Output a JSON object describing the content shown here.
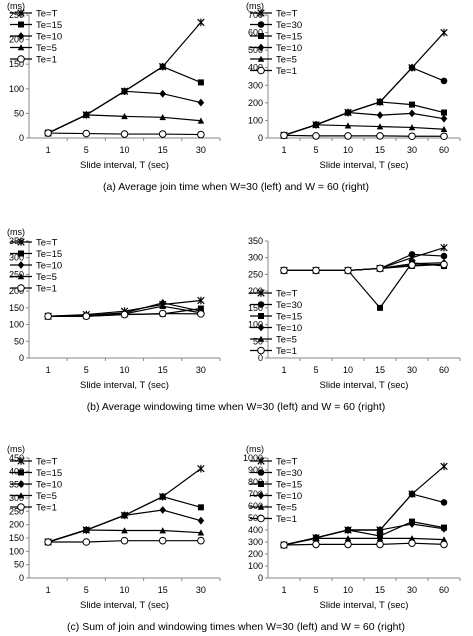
{
  "figure": {
    "captions": [
      "(a) Average join time when W=30 (left) and W = 60 (right)",
      "(b) Average windowing time when W=30 (left) and W = 60 (right)",
      "(c) Sum of join and windowing times when W=30 (left) and W = 60 (right)"
    ]
  },
  "chart_data": [
    {
      "type": "line",
      "panel": "a-left",
      "title": "",
      "xlabel": "Slide interval, T (sec)",
      "ylabel": "(ms)",
      "categories": [
        "1",
        "5",
        "10",
        "15",
        "30"
      ],
      "ylim": [
        0,
        250
      ],
      "yticks": [
        0,
        50,
        100,
        150,
        200,
        250
      ],
      "grid": false,
      "legend": "top-left",
      "series": [
        {
          "name": "Te=T",
          "marker": "star",
          "values": [
            10,
            47,
            95,
            145,
            235
          ]
        },
        {
          "name": "Te=15",
          "marker": "square",
          "values": [
            10,
            47,
            95,
            145,
            113
          ]
        },
        {
          "name": "Te=10",
          "marker": "diamond",
          "values": [
            10,
            47,
            95,
            90,
            72
          ]
        },
        {
          "name": "Te=5",
          "marker": "triangle",
          "values": [
            10,
            47,
            44,
            42,
            35
          ]
        },
        {
          "name": "Te=1",
          "marker": "circle",
          "values": [
            10,
            9,
            8,
            8,
            7
          ]
        }
      ]
    },
    {
      "type": "line",
      "panel": "a-right",
      "title": "",
      "xlabel": "Slide interval, T (sec)",
      "ylabel": "(ms)",
      "categories": [
        "1",
        "5",
        "10",
        "15",
        "30",
        "60"
      ],
      "ylim": [
        0,
        700
      ],
      "yticks": [
        0,
        100,
        200,
        300,
        400,
        500,
        600,
        700
      ],
      "grid": false,
      "legend": "top-left",
      "series": [
        {
          "name": "Te=T",
          "marker": "star",
          "values": [
            15,
            75,
            145,
            205,
            400,
            600
          ]
        },
        {
          "name": "Te=30",
          "marker": "circle-filled",
          "values": [
            15,
            75,
            145,
            205,
            400,
            325
          ]
        },
        {
          "name": "Te=15",
          "marker": "square",
          "values": [
            15,
            75,
            145,
            205,
            190,
            145
          ]
        },
        {
          "name": "Te=10",
          "marker": "diamond",
          "values": [
            15,
            75,
            145,
            130,
            140,
            110
          ]
        },
        {
          "name": "Te=5",
          "marker": "triangle",
          "values": [
            15,
            75,
            70,
            65,
            60,
            50
          ]
        },
        {
          "name": "Te=1",
          "marker": "circle",
          "values": [
            15,
            12,
            12,
            12,
            10,
            10
          ]
        }
      ]
    },
    {
      "type": "line",
      "panel": "b-left",
      "title": "",
      "xlabel": "Slide interval, T (sec)",
      "ylabel": "(ms)",
      "categories": [
        "1",
        "5",
        "10",
        "15",
        "30"
      ],
      "ylim": [
        0,
        350
      ],
      "yticks": [
        0,
        50,
        100,
        150,
        200,
        250,
        300,
        350
      ],
      "grid": false,
      "legend": "top-left",
      "series": [
        {
          "name": "Te=T",
          "marker": "star",
          "values": [
            125,
            130,
            140,
            160,
            172
          ]
        },
        {
          "name": "Te=15",
          "marker": "square",
          "values": [
            125,
            125,
            130,
            132,
            148
          ]
        },
        {
          "name": "Te=10",
          "marker": "diamond",
          "values": [
            125,
            128,
            135,
            165,
            140
          ]
        },
        {
          "name": "Te=5",
          "marker": "triangle",
          "values": [
            125,
            125,
            132,
            155,
            135
          ]
        },
        {
          "name": "Te=1",
          "marker": "circle",
          "values": [
            125,
            125,
            130,
            133,
            132
          ]
        }
      ]
    },
    {
      "type": "line",
      "panel": "b-right",
      "title": "",
      "xlabel": "Slide interval, T (sec)",
      "ylabel": "",
      "categories": [
        "1",
        "5",
        "10",
        "15",
        "30",
        "60"
      ],
      "ylim": [
        0,
        350
      ],
      "yticks": [
        0,
        50,
        100,
        150,
        200,
        250,
        300,
        350
      ],
      "grid": false,
      "legend": "bottom-left",
      "series": [
        {
          "name": "Te=T",
          "marker": "star",
          "values": [
            262,
            262,
            262,
            268,
            300,
            330
          ]
        },
        {
          "name": "Te=30",
          "marker": "circle-filled",
          "values": [
            262,
            262,
            262,
            268,
            310,
            305
          ]
        },
        {
          "name": "Te=15",
          "marker": "square",
          "values": [
            262,
            262,
            262,
            150,
            285,
            275
          ]
        },
        {
          "name": "Te=10",
          "marker": "diamond",
          "values": [
            262,
            262,
            262,
            268,
            282,
            285
          ]
        },
        {
          "name": "Te=5",
          "marker": "triangle",
          "values": [
            262,
            262,
            262,
            268,
            275,
            280
          ]
        },
        {
          "name": "Te=1",
          "marker": "circle",
          "values": [
            262,
            262,
            262,
            268,
            278,
            280
          ]
        }
      ]
    },
    {
      "type": "line",
      "panel": "c-left",
      "title": "",
      "xlabel": "Slide interval, T (sec)",
      "ylabel": "(ms)",
      "categories": [
        "1",
        "5",
        "10",
        "15",
        "30"
      ],
      "ylim": [
        0,
        450
      ],
      "yticks": [
        0,
        50,
        100,
        150,
        200,
        250,
        300,
        350,
        400,
        450
      ],
      "grid": false,
      "legend": "top-left",
      "series": [
        {
          "name": "Te=T",
          "marker": "star",
          "values": [
            135,
            180,
            235,
            305,
            410
          ]
        },
        {
          "name": "Te=15",
          "marker": "square",
          "values": [
            135,
            180,
            235,
            305,
            265
          ]
        },
        {
          "name": "Te=10",
          "marker": "diamond",
          "values": [
            135,
            180,
            235,
            255,
            215
          ]
        },
        {
          "name": "Te=5",
          "marker": "triangle",
          "values": [
            135,
            180,
            178,
            178,
            170
          ]
        },
        {
          "name": "Te=1",
          "marker": "circle",
          "values": [
            135,
            135,
            140,
            140,
            140
          ]
        }
      ]
    },
    {
      "type": "line",
      "panel": "c-right",
      "title": "",
      "xlabel": "Slide interval, T (sec)",
      "ylabel": "(ms)",
      "categories": [
        "1",
        "5",
        "10",
        "15",
        "30",
        "60"
      ],
      "ylim": [
        0,
        1000
      ],
      "yticks": [
        0,
        100,
        200,
        300,
        400,
        500,
        600,
        700,
        800,
        900,
        1000
      ],
      "grid": false,
      "legend": "top-left",
      "series": [
        {
          "name": "Te=T",
          "marker": "star",
          "values": [
            275,
            335,
            400,
            400,
            700,
            930
          ]
        },
        {
          "name": "Te=30",
          "marker": "circle-filled",
          "values": [
            275,
            335,
            400,
            400,
            700,
            630
          ]
        },
        {
          "name": "Te=15",
          "marker": "square",
          "values": [
            275,
            335,
            400,
            350,
            470,
            420
          ]
        },
        {
          "name": "Te=10",
          "marker": "diamond",
          "values": [
            275,
            335,
            400,
            400,
            450,
            410
          ]
        },
        {
          "name": "Te=5",
          "marker": "triangle",
          "values": [
            275,
            330,
            330,
            330,
            330,
            320
          ]
        },
        {
          "name": "Te=1",
          "marker": "circle",
          "values": [
            275,
            280,
            280,
            280,
            290,
            280
          ]
        }
      ]
    }
  ]
}
